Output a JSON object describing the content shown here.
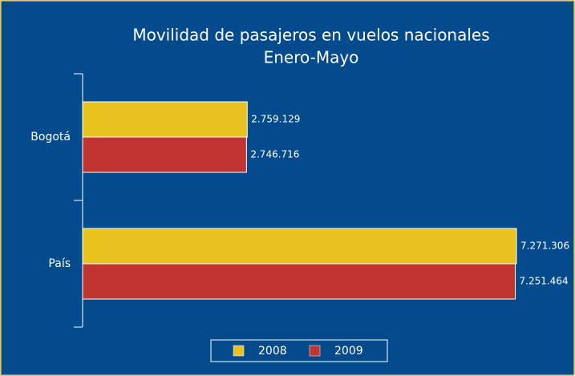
{
  "chart_data": {
    "type": "bar",
    "orientation": "horizontal",
    "title": "Movilidad de pasajeros en vuelos nacionales",
    "subtitle": "Enero-Mayo",
    "categories": [
      "Bogotá",
      "País"
    ],
    "series": [
      {
        "name": "2008",
        "color": "#e8c21e",
        "values": [
          2759129,
          7271306
        ],
        "value_labels": [
          "2.759.129",
          "7.271.306"
        ]
      },
      {
        "name": "2009",
        "color": "#c13530",
        "values": [
          2746716,
          7251464
        ],
        "value_labels": [
          "2.746.716",
          "7.251.464"
        ]
      }
    ],
    "legend": "bottom"
  }
}
